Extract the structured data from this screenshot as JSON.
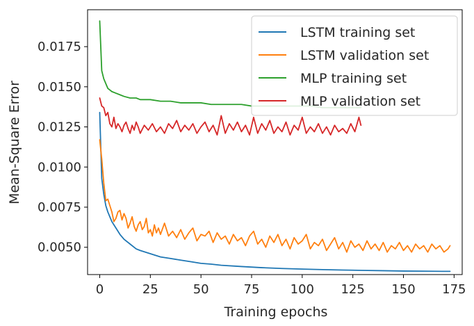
{
  "chart_data": {
    "type": "line",
    "title": "",
    "xlabel": "Training epochs",
    "ylabel": "Mean-Square Error",
    "xlim": [
      -6,
      179
    ],
    "ylim": [
      0.0033,
      0.0198
    ],
    "xticks": [
      0,
      25,
      50,
      75,
      100,
      125,
      150,
      175
    ],
    "yticks": [
      0.005,
      0.0075,
      0.01,
      0.0125,
      0.015,
      0.0175
    ],
    "ytick_labels": [
      "0.0050",
      "0.0075",
      "0.0100",
      "0.0125",
      "0.0150",
      "0.0175"
    ],
    "legend_position": "top-right",
    "grid": false,
    "series": [
      {
        "name": "LSTM training set",
        "color": "#1f77b4",
        "points": [
          [
            0,
            0.0134
          ],
          [
            1,
            0.0093
          ],
          [
            2,
            0.0083
          ],
          [
            3,
            0.0076
          ],
          [
            4,
            0.0072
          ],
          [
            5,
            0.0069
          ],
          [
            6,
            0.0066
          ],
          [
            8,
            0.0062
          ],
          [
            10,
            0.0058
          ],
          [
            12,
            0.0055
          ],
          [
            15,
            0.0052
          ],
          [
            18,
            0.0049
          ],
          [
            20,
            0.0048
          ],
          [
            25,
            0.0046
          ],
          [
            30,
            0.0044
          ],
          [
            35,
            0.0043
          ],
          [
            40,
            0.0042
          ],
          [
            45,
            0.0041
          ],
          [
            50,
            0.004
          ],
          [
            55,
            0.00395
          ],
          [
            60,
            0.00388
          ],
          [
            70,
            0.0038
          ],
          [
            80,
            0.00373
          ],
          [
            90,
            0.00368
          ],
          [
            100,
            0.00364
          ],
          [
            110,
            0.00361
          ],
          [
            120,
            0.00358
          ],
          [
            130,
            0.00356
          ],
          [
            140,
            0.00354
          ],
          [
            150,
            0.00352
          ],
          [
            160,
            0.00351
          ],
          [
            170,
            0.0035
          ],
          [
            173,
            0.0035
          ]
        ]
      },
      {
        "name": "LSTM validation set",
        "color": "#ff7f0e",
        "points": [
          [
            0,
            0.0117
          ],
          [
            1,
            0.0105
          ],
          [
            2,
            0.009
          ],
          [
            3,
            0.0079
          ],
          [
            4,
            0.008
          ],
          [
            5,
            0.0076
          ],
          [
            6,
            0.0072
          ],
          [
            7,
            0.0066
          ],
          [
            8,
            0.0068
          ],
          [
            9,
            0.0072
          ],
          [
            10,
            0.0073
          ],
          [
            11,
            0.0067
          ],
          [
            12,
            0.0071
          ],
          [
            13,
            0.0068
          ],
          [
            14,
            0.0062
          ],
          [
            15,
            0.0065
          ],
          [
            16,
            0.0069
          ],
          [
            17,
            0.0063
          ],
          [
            18,
            0.006
          ],
          [
            19,
            0.0064
          ],
          [
            20,
            0.0066
          ],
          [
            21,
            0.0061
          ],
          [
            22,
            0.0063
          ],
          [
            23,
            0.0068
          ],
          [
            24,
            0.0059
          ],
          [
            25,
            0.0061
          ],
          [
            26,
            0.0057
          ],
          [
            27,
            0.0064
          ],
          [
            28,
            0.0059
          ],
          [
            29,
            0.0062
          ],
          [
            30,
            0.0058
          ],
          [
            32,
            0.0065
          ],
          [
            34,
            0.0057
          ],
          [
            36,
            0.006
          ],
          [
            38,
            0.0056
          ],
          [
            40,
            0.0061
          ],
          [
            42,
            0.0055
          ],
          [
            44,
            0.0059
          ],
          [
            46,
            0.0062
          ],
          [
            48,
            0.0054
          ],
          [
            50,
            0.0058
          ],
          [
            52,
            0.0057
          ],
          [
            54,
            0.006
          ],
          [
            56,
            0.0053
          ],
          [
            58,
            0.0059
          ],
          [
            60,
            0.0055
          ],
          [
            62,
            0.0057
          ],
          [
            64,
            0.0052
          ],
          [
            66,
            0.0058
          ],
          [
            68,
            0.0054
          ],
          [
            70,
            0.0056
          ],
          [
            72,
            0.0051
          ],
          [
            74,
            0.0057
          ],
          [
            76,
            0.006
          ],
          [
            78,
            0.0052
          ],
          [
            80,
            0.0055
          ],
          [
            82,
            0.005
          ],
          [
            84,
            0.0057
          ],
          [
            86,
            0.0053
          ],
          [
            88,
            0.0058
          ],
          [
            90,
            0.0051
          ],
          [
            92,
            0.0055
          ],
          [
            94,
            0.0049
          ],
          [
            96,
            0.0056
          ],
          [
            98,
            0.0052
          ],
          [
            100,
            0.0054
          ],
          [
            102,
            0.0058
          ],
          [
            104,
            0.0049
          ],
          [
            106,
            0.0053
          ],
          [
            108,
            0.0051
          ],
          [
            110,
            0.0055
          ],
          [
            112,
            0.0048
          ],
          [
            114,
            0.0052
          ],
          [
            116,
            0.0056
          ],
          [
            118,
            0.0049
          ],
          [
            120,
            0.0053
          ],
          [
            122,
            0.0047
          ],
          [
            124,
            0.0054
          ],
          [
            126,
            0.005
          ],
          [
            128,
            0.0052
          ],
          [
            130,
            0.0048
          ],
          [
            132,
            0.0054
          ],
          [
            134,
            0.0049
          ],
          [
            136,
            0.0052
          ],
          [
            138,
            0.0048
          ],
          [
            140,
            0.0053
          ],
          [
            142,
            0.0047
          ],
          [
            144,
            0.0051
          ],
          [
            146,
            0.0049
          ],
          [
            148,
            0.0053
          ],
          [
            150,
            0.0048
          ],
          [
            152,
            0.0051
          ],
          [
            154,
            0.0047
          ],
          [
            156,
            0.0052
          ],
          [
            158,
            0.0049
          ],
          [
            160,
            0.0051
          ],
          [
            162,
            0.0047
          ],
          [
            164,
            0.0052
          ],
          [
            166,
            0.0049
          ],
          [
            168,
            0.0051
          ],
          [
            170,
            0.0047
          ],
          [
            172,
            0.0049
          ],
          [
            173,
            0.0051
          ]
        ]
      },
      {
        "name": "MLP training set",
        "color": "#2ca02c",
        "points": [
          [
            0,
            0.0191
          ],
          [
            1,
            0.016
          ],
          [
            2,
            0.0155
          ],
          [
            3,
            0.0152
          ],
          [
            4,
            0.0149
          ],
          [
            5,
            0.0148
          ],
          [
            6,
            0.0147
          ],
          [
            8,
            0.0146
          ],
          [
            10,
            0.0145
          ],
          [
            12,
            0.0144
          ],
          [
            15,
            0.0143
          ],
          [
            18,
            0.0143
          ],
          [
            20,
            0.0142
          ],
          [
            25,
            0.0142
          ],
          [
            30,
            0.0141
          ],
          [
            35,
            0.0141
          ],
          [
            40,
            0.014
          ],
          [
            45,
            0.014
          ],
          [
            50,
            0.014
          ],
          [
            55,
            0.0139
          ],
          [
            60,
            0.0139
          ],
          [
            65,
            0.0139
          ],
          [
            70,
            0.0139
          ],
          [
            75,
            0.0138
          ],
          [
            80,
            0.0138
          ],
          [
            85,
            0.0138
          ],
          [
            90,
            0.0138
          ],
          [
            95,
            0.0138
          ],
          [
            100,
            0.0138
          ],
          [
            105,
            0.0138
          ],
          [
            110,
            0.0137
          ],
          [
            115,
            0.0137
          ],
          [
            120,
            0.0137
          ],
          [
            125,
            0.0137
          ],
          [
            129,
            0.0137
          ]
        ]
      },
      {
        "name": "MLP validation set",
        "color": "#d62728",
        "points": [
          [
            0,
            0.0143
          ],
          [
            1,
            0.0138
          ],
          [
            2,
            0.0137
          ],
          [
            3,
            0.0132
          ],
          [
            4,
            0.0134
          ],
          [
            5,
            0.0127
          ],
          [
            6,
            0.0125
          ],
          [
            7,
            0.0131
          ],
          [
            8,
            0.0124
          ],
          [
            9,
            0.0127
          ],
          [
            10,
            0.0125
          ],
          [
            11,
            0.0122
          ],
          [
            12,
            0.0126
          ],
          [
            13,
            0.0128
          ],
          [
            14,
            0.0124
          ],
          [
            15,
            0.0121
          ],
          [
            16,
            0.0126
          ],
          [
            17,
            0.0123
          ],
          [
            18,
            0.0128
          ],
          [
            19,
            0.0125
          ],
          [
            20,
            0.0121
          ],
          [
            22,
            0.0126
          ],
          [
            24,
            0.0123
          ],
          [
            26,
            0.0127
          ],
          [
            28,
            0.0122
          ],
          [
            30,
            0.0125
          ],
          [
            32,
            0.0121
          ],
          [
            34,
            0.0127
          ],
          [
            36,
            0.0124
          ],
          [
            38,
            0.0129
          ],
          [
            40,
            0.0122
          ],
          [
            42,
            0.0126
          ],
          [
            44,
            0.0123
          ],
          [
            46,
            0.0127
          ],
          [
            48,
            0.0121
          ],
          [
            50,
            0.0125
          ],
          [
            52,
            0.0128
          ],
          [
            54,
            0.0122
          ],
          [
            56,
            0.0126
          ],
          [
            58,
            0.012
          ],
          [
            60,
            0.0132
          ],
          [
            62,
            0.0121
          ],
          [
            64,
            0.0127
          ],
          [
            66,
            0.0123
          ],
          [
            68,
            0.0128
          ],
          [
            70,
            0.0122
          ],
          [
            72,
            0.0126
          ],
          [
            74,
            0.012
          ],
          [
            76,
            0.0131
          ],
          [
            78,
            0.0121
          ],
          [
            80,
            0.0127
          ],
          [
            82,
            0.0123
          ],
          [
            84,
            0.0129
          ],
          [
            86,
            0.0121
          ],
          [
            88,
            0.0125
          ],
          [
            90,
            0.0122
          ],
          [
            92,
            0.0128
          ],
          [
            94,
            0.012
          ],
          [
            96,
            0.0126
          ],
          [
            98,
            0.0123
          ],
          [
            100,
            0.0131
          ],
          [
            102,
            0.0121
          ],
          [
            104,
            0.0125
          ],
          [
            106,
            0.0122
          ],
          [
            108,
            0.0127
          ],
          [
            110,
            0.0121
          ],
          [
            112,
            0.0125
          ],
          [
            114,
            0.012
          ],
          [
            116,
            0.0126
          ],
          [
            118,
            0.0122
          ],
          [
            120,
            0.0124
          ],
          [
            122,
            0.0121
          ],
          [
            124,
            0.0127
          ],
          [
            126,
            0.0122
          ],
          [
            128,
            0.0131
          ],
          [
            129,
            0.0126
          ]
        ]
      }
    ]
  }
}
